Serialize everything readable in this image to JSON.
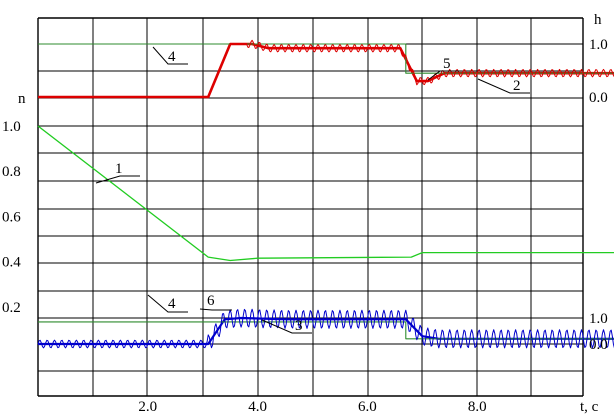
{
  "chart_data": {
    "type": "line",
    "left_axis": {
      "label": "n",
      "ylim": [
        0.0,
        1.0
      ],
      "ticks": [
        {
          "value": 1.0,
          "label": "1.0"
        },
        {
          "value": 0.8,
          "label": "0.8"
        },
        {
          "value": 0.6,
          "label": "0.6"
        },
        {
          "value": 0.4,
          "label": "0.4"
        },
        {
          "value": 0.2,
          "label": "0.2"
        }
      ]
    },
    "x_axis": {
      "label": "t, c",
      "xlim": [
        0,
        11
      ],
      "ticks": [
        {
          "value": 2,
          "label": "2.0"
        },
        {
          "value": 4,
          "label": "4.0"
        },
        {
          "value": 6,
          "label": "6.0"
        },
        {
          "value": 8,
          "label": "8.0"
        }
      ]
    },
    "right_axis_upper": {
      "label": "h",
      "ticks": [
        {
          "value": 1.0,
          "label": "1.0"
        },
        {
          "value": 0.0,
          "label": "0.0"
        }
      ]
    },
    "right_axis_lower": {
      "ticks": [
        {
          "value": 1.0,
          "label": "1.0"
        },
        {
          "value": 0.0,
          "label": "0.0"
        }
      ]
    },
    "grid": true,
    "colors": {
      "red": "#dd0000",
      "green": "#22cc22",
      "dark_green": "#2e8b2e",
      "blue": "#0000cc",
      "grid": "#000000"
    },
    "series": [
      {
        "label": "1",
        "color": "green",
        "axis": "left",
        "x": [
          0,
          3.1,
          3.5,
          4.0,
          6.8,
          7.0,
          11
        ],
        "y": [
          1.0,
          0.42,
          0.405,
          0.415,
          0.42,
          0.44,
          0.44
        ]
      },
      {
        "label": "2",
        "color": "red",
        "axis": "right_upper",
        "x": [
          0,
          3.1,
          3.5,
          3.9,
          4.2,
          6.6,
          6.9,
          7.1,
          7.4,
          11
        ],
        "y": [
          0.0,
          0.0,
          1.0,
          1.0,
          0.92,
          0.92,
          0.3,
          0.3,
          0.45,
          0.45
        ]
      },
      {
        "label": "3",
        "color": "blue",
        "axis": "right_lower",
        "x": [
          0,
          3.1,
          3.4,
          3.7,
          4.5,
          6.7,
          7.0,
          7.3,
          11
        ],
        "y": [
          0.0,
          0.0,
          0.95,
          1.0,
          0.95,
          0.95,
          0.3,
          0.2,
          0.2
        ]
      },
      {
        "label": "4",
        "color": "dark_green",
        "axis": "right_upper",
        "x": [
          0,
          6.7,
          6.7,
          11
        ],
        "y": [
          1.0,
          1.0,
          0.45,
          0.45
        ]
      },
      {
        "label": "4",
        "color": "dark_green",
        "axis": "right_lower",
        "x": [
          0,
          6.7,
          6.7,
          11
        ],
        "y": [
          0.85,
          0.85,
          0.2,
          0.2
        ]
      },
      {
        "label": "5",
        "color": "red",
        "axis": "right_upper",
        "oscillating": true,
        "x": [
          0,
          3.1,
          3.5,
          3.9,
          4.2,
          6.6,
          6.9,
          7.1,
          7.4,
          11
        ],
        "y": [
          0.0,
          0.0,
          1.0,
          1.0,
          0.92,
          0.92,
          0.3,
          0.3,
          0.45,
          0.45
        ]
      },
      {
        "label": "6",
        "color": "blue",
        "axis": "right_lower",
        "oscillating": true,
        "x": [
          0,
          3.1,
          3.4,
          3.7,
          4.5,
          6.7,
          7.0,
          7.3,
          11
        ],
        "y": [
          0.0,
          0.0,
          0.95,
          1.0,
          0.95,
          0.95,
          0.3,
          0.2,
          0.2
        ]
      }
    ],
    "annotations": [
      "1",
      "2",
      "3",
      "4",
      "4",
      "5",
      "6"
    ]
  }
}
